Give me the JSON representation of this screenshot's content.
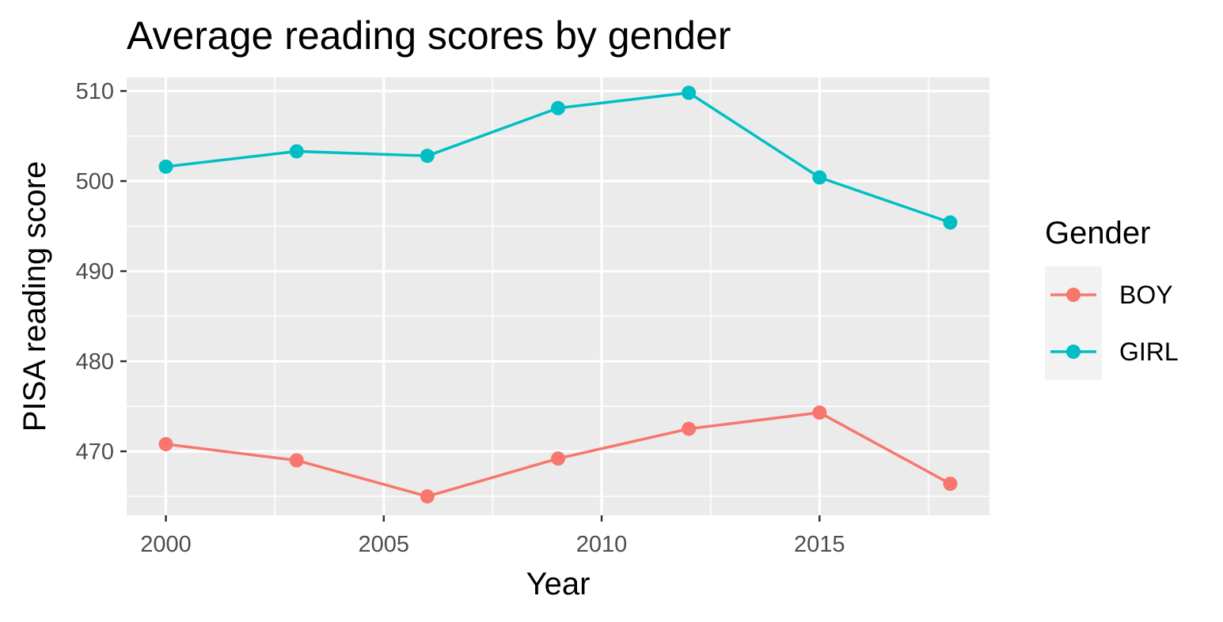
{
  "chart_data": {
    "type": "line",
    "title": "Average reading scores by gender",
    "xlabel": "Year",
    "ylabel": "PISA reading score",
    "x": [
      2000,
      2003,
      2006,
      2009,
      2012,
      2015,
      2018
    ],
    "xlim": [
      1999.1,
      2018.9
    ],
    "ylim": [
      462.9,
      511.5
    ],
    "xticks": [
      2000,
      2005,
      2010,
      2015
    ],
    "yticks": [
      470,
      480,
      490,
      500,
      510
    ],
    "grid": true,
    "legend": {
      "title": "Gender",
      "position": "right"
    },
    "series": [
      {
        "name": "BOY",
        "color": "#F8766D",
        "values": [
          470.8,
          469.0,
          465.0,
          469.2,
          472.5,
          474.3,
          466.4
        ]
      },
      {
        "name": "GIRL",
        "color": "#00BFC4",
        "values": [
          501.6,
          503.3,
          502.8,
          508.1,
          509.8,
          500.4,
          495.4
        ]
      }
    ],
    "panel_background": "#EBEBEB",
    "grid_color": "#FFFFFF"
  }
}
